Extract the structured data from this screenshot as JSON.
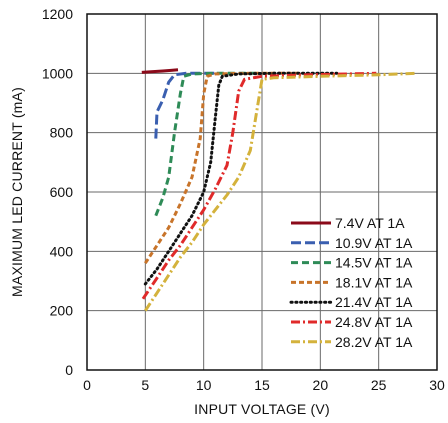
{
  "chart_data": {
    "type": "line",
    "title": "",
    "xlabel": "INPUT VOLTAGE (V)",
    "ylabel": "MAXIMUM LED CURRENT (mA)",
    "xlim": [
      0,
      30
    ],
    "ylim": [
      0,
      1200
    ],
    "xticks": [
      0,
      5,
      10,
      15,
      20,
      25,
      30
    ],
    "yticks": [
      0,
      200,
      400,
      600,
      800,
      1000,
      1200
    ],
    "grid": true,
    "legend_position": "bottom-right",
    "series": [
      {
        "name": "7.4V AT 1A",
        "color": "#8b0a1a",
        "dash": "solid",
        "points": [
          [
            4.7,
            1003
          ],
          [
            5.5,
            1005
          ],
          [
            6.5,
            1008
          ],
          [
            7.2,
            1010
          ],
          [
            7.8,
            1012
          ]
        ]
      },
      {
        "name": "10.9V AT 1A",
        "color": "#3a5fb0",
        "dash": "long-dash",
        "points": [
          [
            5.9,
            780
          ],
          [
            6.0,
            870
          ],
          [
            6.5,
            910
          ],
          [
            7.0,
            970
          ],
          [
            7.5,
            995
          ],
          [
            8.5,
            1000
          ],
          [
            10.0,
            1000
          ],
          [
            10.9,
            1000
          ]
        ]
      },
      {
        "name": "14.5V AT 1A",
        "color": "#2e8b57",
        "dash": "dash",
        "points": [
          [
            5.9,
            520
          ],
          [
            6.5,
            580
          ],
          [
            7.0,
            650
          ],
          [
            7.5,
            800
          ],
          [
            8.0,
            930
          ],
          [
            8.3,
            990
          ],
          [
            9.0,
            998
          ],
          [
            11.0,
            1000
          ],
          [
            14.5,
            1000
          ]
        ]
      },
      {
        "name": "18.1V AT 1A",
        "color": "#c8742a",
        "dash": "short-dash",
        "points": [
          [
            5.0,
            360
          ],
          [
            6.0,
            420
          ],
          [
            7.0,
            480
          ],
          [
            8.0,
            560
          ],
          [
            9.0,
            650
          ],
          [
            9.7,
            780
          ],
          [
            10.0,
            930
          ],
          [
            10.3,
            990
          ],
          [
            11.0,
            998
          ],
          [
            14.0,
            1000
          ],
          [
            18.1,
            1000
          ]
        ]
      },
      {
        "name": "21.4V AT 1A",
        "color": "#111111",
        "dash": "dotted",
        "points": [
          [
            5.0,
            290
          ],
          [
            6.0,
            340
          ],
          [
            7.0,
            400
          ],
          [
            8.0,
            460
          ],
          [
            9.0,
            520
          ],
          [
            10.0,
            600
          ],
          [
            10.6,
            700
          ],
          [
            11.0,
            850
          ],
          [
            11.3,
            960
          ],
          [
            11.6,
            990
          ],
          [
            13.0,
            998
          ],
          [
            16.0,
            1000
          ],
          [
            21.4,
            1000
          ]
        ]
      },
      {
        "name": "24.8V AT 1A",
        "color": "#e02a2a",
        "dash": "dash-dot",
        "points": [
          [
            4.8,
            240
          ],
          [
            6.0,
            310
          ],
          [
            7.0,
            370
          ],
          [
            8.0,
            420
          ],
          [
            9.0,
            480
          ],
          [
            10.0,
            540
          ],
          [
            11.0,
            610
          ],
          [
            12.0,
            690
          ],
          [
            12.5,
            800
          ],
          [
            13.0,
            940
          ],
          [
            13.5,
            980
          ],
          [
            15.0,
            990
          ],
          [
            19.0,
            995
          ],
          [
            24.8,
            1000
          ]
        ]
      },
      {
        "name": "28.2V AT 1A",
        "color": "#d4b23c",
        "dash": "dash-dot",
        "points": [
          [
            5.0,
            200
          ],
          [
            6.0,
            260
          ],
          [
            7.0,
            320
          ],
          [
            8.0,
            380
          ],
          [
            9.0,
            430
          ],
          [
            10.0,
            490
          ],
          [
            11.0,
            540
          ],
          [
            12.0,
            590
          ],
          [
            13.0,
            650
          ],
          [
            14.0,
            740
          ],
          [
            15.0,
            980
          ],
          [
            16.0,
            985
          ],
          [
            20.0,
            990
          ],
          [
            25.0,
            995
          ],
          [
            28.2,
            1000
          ]
        ]
      }
    ]
  }
}
